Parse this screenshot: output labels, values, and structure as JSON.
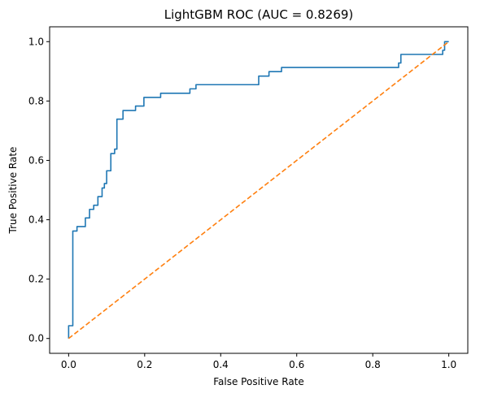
{
  "chart_data": {
    "type": "line",
    "title": "LightGBM ROC (AUC = 0.8269)",
    "xlabel": "False Positive Rate",
    "ylabel": "True Positive Rate",
    "xlim": [
      -0.05,
      1.05
    ],
    "ylim": [
      -0.05,
      1.05
    ],
    "xticks": [
      0.0,
      0.2,
      0.4,
      0.6,
      0.8,
      1.0
    ],
    "yticks": [
      0.0,
      0.2,
      0.4,
      0.6,
      0.8,
      1.0
    ],
    "xtick_labels": [
      "0.0",
      "0.2",
      "0.4",
      "0.6",
      "0.8",
      "1.0"
    ],
    "ytick_labels": [
      "0.0",
      "0.2",
      "0.4",
      "0.6",
      "0.8",
      "1.0"
    ],
    "grid": false,
    "series": [
      {
        "color": "#1f77b4",
        "style": "solid",
        "points": [
          [
            0.0,
            0.0
          ],
          [
            0.0,
            0.043
          ],
          [
            0.011,
            0.043
          ],
          [
            0.011,
            0.362
          ],
          [
            0.022,
            0.362
          ],
          [
            0.022,
            0.377
          ],
          [
            0.044,
            0.377
          ],
          [
            0.044,
            0.406
          ],
          [
            0.055,
            0.406
          ],
          [
            0.055,
            0.435
          ],
          [
            0.066,
            0.435
          ],
          [
            0.066,
            0.449
          ],
          [
            0.077,
            0.449
          ],
          [
            0.077,
            0.478
          ],
          [
            0.088,
            0.478
          ],
          [
            0.088,
            0.507
          ],
          [
            0.094,
            0.507
          ],
          [
            0.094,
            0.522
          ],
          [
            0.1,
            0.522
          ],
          [
            0.1,
            0.565
          ],
          [
            0.111,
            0.565
          ],
          [
            0.111,
            0.623
          ],
          [
            0.121,
            0.623
          ],
          [
            0.121,
            0.638
          ],
          [
            0.127,
            0.638
          ],
          [
            0.127,
            0.739
          ],
          [
            0.143,
            0.739
          ],
          [
            0.143,
            0.768
          ],
          [
            0.176,
            0.768
          ],
          [
            0.176,
            0.783
          ],
          [
            0.198,
            0.783
          ],
          [
            0.198,
            0.812
          ],
          [
            0.242,
            0.812
          ],
          [
            0.242,
            0.826
          ],
          [
            0.319,
            0.826
          ],
          [
            0.319,
            0.841
          ],
          [
            0.335,
            0.841
          ],
          [
            0.335,
            0.855
          ],
          [
            0.5,
            0.855
          ],
          [
            0.5,
            0.884
          ],
          [
            0.527,
            0.884
          ],
          [
            0.527,
            0.899
          ],
          [
            0.56,
            0.899
          ],
          [
            0.56,
            0.913
          ],
          [
            0.868,
            0.913
          ],
          [
            0.868,
            0.928
          ],
          [
            0.874,
            0.928
          ],
          [
            0.874,
            0.957
          ],
          [
            0.984,
            0.957
          ],
          [
            0.984,
            0.971
          ],
          [
            0.989,
            0.971
          ],
          [
            0.989,
            1.0
          ],
          [
            1.0,
            1.0
          ]
        ]
      },
      {
        "color": "#ff7f0e",
        "style": "dashed",
        "points": [
          [
            0.0,
            0.0
          ],
          [
            1.0,
            1.0
          ]
        ]
      }
    ]
  }
}
